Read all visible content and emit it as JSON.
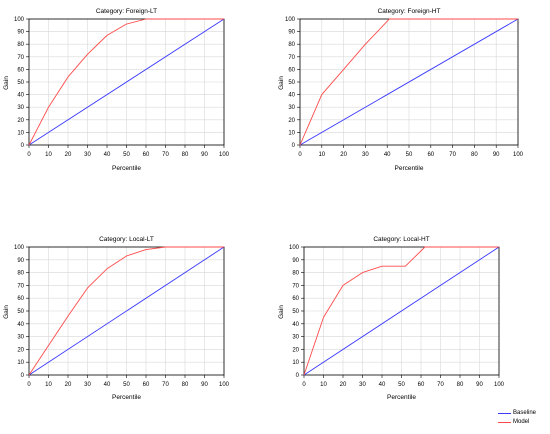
{
  "colors": {
    "baseline": "#3a3aff",
    "model": "#ff4a4a",
    "grid": "#d8d8d8",
    "axis": "#000000"
  },
  "legend": [
    {
      "name": "Baseline",
      "color": "#3a3aff"
    },
    {
      "name": "Model",
      "color": "#ff4a4a"
    }
  ],
  "chart_data": [
    {
      "type": "line",
      "title": "Category: Foreign-LT",
      "xlabel": "Percentile",
      "ylabel": "Gain",
      "xlim": [
        0,
        100
      ],
      "ylim": [
        0,
        100
      ],
      "xticks": [
        0,
        10,
        20,
        30,
        40,
        50,
        60,
        70,
        80,
        90,
        100
      ],
      "yticks": [
        0,
        10,
        20,
        30,
        40,
        50,
        60,
        70,
        80,
        90,
        100
      ],
      "grid": true,
      "series": [
        {
          "name": "Baseline",
          "x": [
            0,
            100
          ],
          "y": [
            0,
            100
          ]
        },
        {
          "name": "Model",
          "x": [
            0,
            10,
            20,
            30,
            40,
            50,
            60,
            70,
            80,
            90,
            100
          ],
          "y": [
            0,
            30,
            54,
            72,
            87,
            96,
            100,
            100,
            100,
            100,
            100
          ]
        }
      ]
    },
    {
      "type": "line",
      "title": "Category: Foreign-HT",
      "xlabel": "Percentile",
      "ylabel": "Gain",
      "xlim": [
        0,
        100
      ],
      "ylim": [
        0,
        100
      ],
      "xticks": [
        0,
        10,
        20,
        30,
        40,
        50,
        60,
        70,
        80,
        90,
        100
      ],
      "yticks": [
        0,
        10,
        20,
        30,
        40,
        50,
        60,
        70,
        80,
        90,
        100
      ],
      "grid": true,
      "series": [
        {
          "name": "Baseline",
          "x": [
            0,
            100
          ],
          "y": [
            0,
            100
          ]
        },
        {
          "name": "Model",
          "x": [
            0,
            10,
            20,
            30,
            41,
            50,
            60,
            70,
            80,
            90,
            100
          ],
          "y": [
            0,
            40,
            60,
            80,
            100,
            100,
            100,
            100,
            100,
            100,
            100
          ]
        }
      ]
    },
    {
      "type": "line",
      "title": "Category: Local-LT",
      "xlabel": "Percentile",
      "ylabel": "Gain",
      "xlim": [
        0,
        100
      ],
      "ylim": [
        0,
        100
      ],
      "xticks": [
        0,
        10,
        20,
        30,
        40,
        50,
        60,
        70,
        80,
        90,
        100
      ],
      "yticks": [
        0,
        10,
        20,
        30,
        40,
        50,
        60,
        70,
        80,
        90,
        100
      ],
      "grid": true,
      "series": [
        {
          "name": "Baseline",
          "x": [
            0,
            100
          ],
          "y": [
            0,
            100
          ]
        },
        {
          "name": "Model",
          "x": [
            0,
            10,
            20,
            30,
            40,
            50,
            60,
            70,
            80,
            90,
            100
          ],
          "y": [
            0,
            23,
            46,
            68,
            83,
            93,
            98,
            100,
            100,
            100,
            100
          ]
        }
      ]
    },
    {
      "type": "line",
      "title": "Category: Local-HT",
      "xlabel": "Percentile",
      "ylabel": "Gain",
      "xlim": [
        0,
        100
      ],
      "ylim": [
        0,
        100
      ],
      "xticks": [
        0,
        10,
        20,
        30,
        40,
        50,
        60,
        70,
        80,
        90,
        100
      ],
      "yticks": [
        0,
        10,
        20,
        30,
        40,
        50,
        60,
        70,
        80,
        90,
        100
      ],
      "grid": true,
      "series": [
        {
          "name": "Baseline",
          "x": [
            0,
            100
          ],
          "y": [
            0,
            100
          ]
        },
        {
          "name": "Model",
          "x": [
            0,
            10,
            20,
            30,
            40,
            52,
            62,
            70,
            80,
            90,
            100
          ],
          "y": [
            0,
            45,
            70,
            80,
            85,
            85,
            100,
            100,
            100,
            100,
            100
          ]
        }
      ]
    }
  ]
}
